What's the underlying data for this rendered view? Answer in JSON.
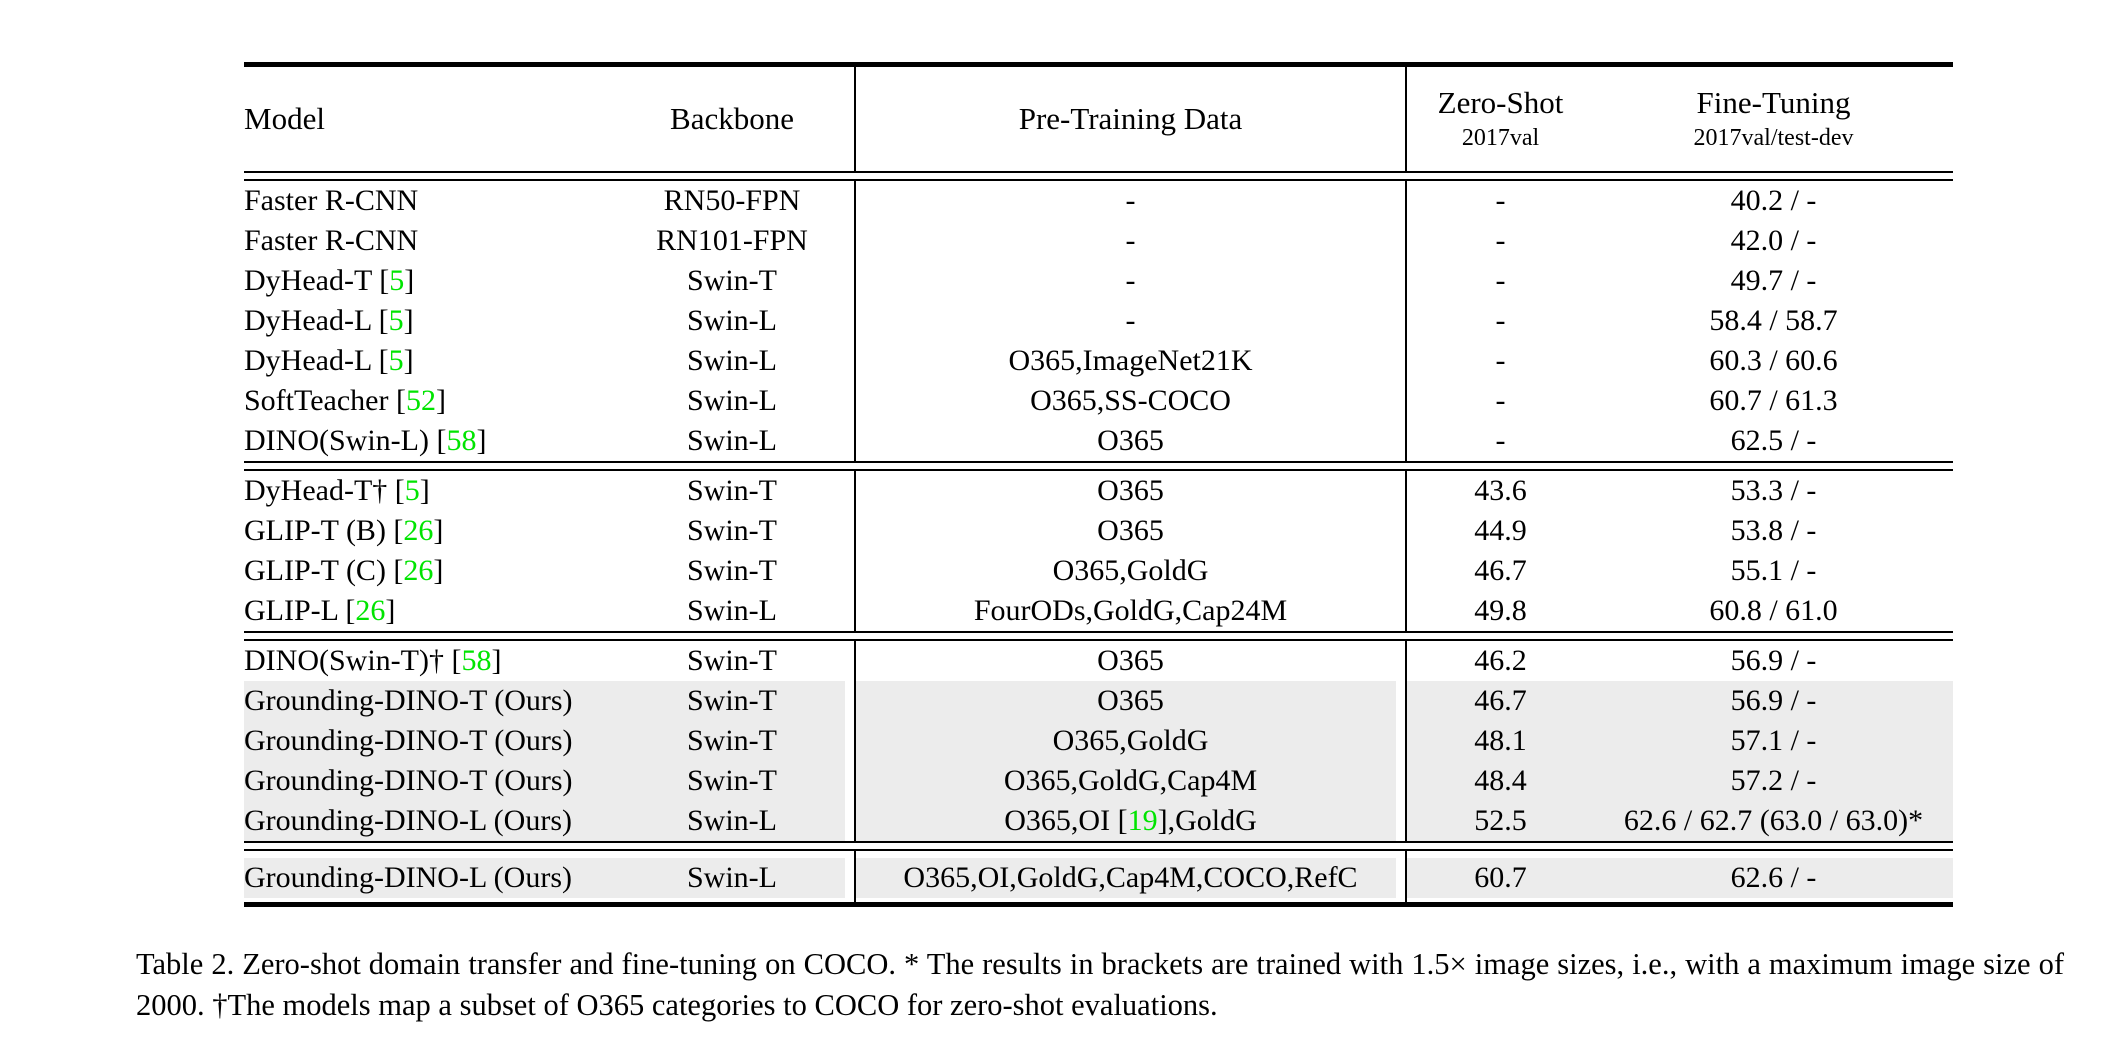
{
  "colors": {
    "row_shade": "#ececec",
    "citation_green": "#00e400",
    "rule": "#000000"
  },
  "table": {
    "columns": [
      {
        "key": "model",
        "label": "Model",
        "sublabel": ""
      },
      {
        "key": "backbone",
        "label": "Backbone",
        "sublabel": ""
      },
      {
        "key": "pretrain",
        "label": "Pre-Training Data",
        "sublabel": ""
      },
      {
        "key": "zeroshot",
        "label": "Zero-Shot",
        "sublabel": "2017val"
      },
      {
        "key": "finetune",
        "label": "Fine-Tuning",
        "sublabel": "2017val/test-dev"
      }
    ],
    "blocks": [
      {
        "rows": [
          {
            "model": "Faster R-CNN",
            "backbone": "RN50-FPN",
            "pretrain": "-",
            "zeroshot": "-",
            "finetune": "40.2 / -"
          },
          {
            "model": "Faster R-CNN",
            "backbone": "RN101-FPN",
            "pretrain": "-",
            "zeroshot": "-",
            "finetune": "42.0 / -"
          },
          {
            "model": "DyHead-T [5]",
            "backbone": "Swin-T",
            "pretrain": "-",
            "zeroshot": "-",
            "finetune": "49.7 / -"
          },
          {
            "model": "DyHead-L [5]",
            "backbone": "Swin-L",
            "pretrain": "-",
            "zeroshot": "-",
            "finetune": "58.4 / 58.7"
          },
          {
            "model": "DyHead-L [5]",
            "backbone": "Swin-L",
            "pretrain": "O365,ImageNet21K",
            "zeroshot": "-",
            "finetune": "60.3 / 60.6"
          },
          {
            "model": "SoftTeacher [52]",
            "backbone": "Swin-L",
            "pretrain": "O365,SS-COCO",
            "zeroshot": "-",
            "finetune": "60.7 / 61.3"
          },
          {
            "model": "DINO(Swin-L) [58]",
            "backbone": "Swin-L",
            "pretrain": "O365",
            "zeroshot": "-",
            "finetune": "62.5 / -"
          }
        ]
      },
      {
        "rows": [
          {
            "model": "DyHead-T† [5]",
            "backbone": "Swin-T",
            "pretrain": "O365",
            "zeroshot": "43.6",
            "finetune": "53.3 / -"
          },
          {
            "model": "GLIP-T (B) [26]",
            "backbone": "Swin-T",
            "pretrain": "O365",
            "zeroshot": "44.9",
            "finetune": "53.8 / -"
          },
          {
            "model": "GLIP-T (C) [26]",
            "backbone": "Swin-T",
            "pretrain": "O365,GoldG",
            "zeroshot": "46.7",
            "finetune": "55.1 / -"
          },
          {
            "model": "GLIP-L [26]",
            "backbone": "Swin-L",
            "pretrain": "FourODs,GoldG,Cap24M",
            "zeroshot": "49.8",
            "finetune": "60.8 / 61.0"
          }
        ]
      },
      {
        "rows": [
          {
            "model": "DINO(Swin-T)† [58]",
            "backbone": "Swin-T",
            "pretrain": "O365",
            "zeroshot": "46.2",
            "finetune": "56.9 / -"
          },
          {
            "model": "Grounding-DINO-T (Ours)",
            "backbone": "Swin-T",
            "pretrain": "O365",
            "zeroshot": "46.7",
            "finetune": "56.9 / -",
            "shaded": true
          },
          {
            "model": "Grounding-DINO-T (Ours)",
            "backbone": "Swin-T",
            "pretrain": "O365,GoldG",
            "zeroshot": "48.1",
            "finetune": "57.1 / -",
            "shaded": true
          },
          {
            "model": "Grounding-DINO-T (Ours)",
            "backbone": "Swin-T",
            "pretrain": "O365,GoldG,Cap4M",
            "zeroshot": "48.4",
            "finetune": "57.2 / -",
            "shaded": true
          },
          {
            "model": "Grounding-DINO-L (Ours)",
            "backbone": "Swin-L",
            "pretrain": "O365,OI [19],GoldG",
            "zeroshot": "52.5",
            "finetune": "62.6 / 62.7 (63.0 / 63.0)*",
            "shaded": true,
            "bold": [
              "zeroshot",
              "finetune"
            ]
          }
        ]
      },
      {
        "spaced": true,
        "rows": [
          {
            "model": "Grounding-DINO-L (Ours)",
            "backbone": "Swin-L",
            "pretrain": "O365,OI,GoldG,Cap4M,COCO,RefC",
            "zeroshot": "60.7",
            "finetune": "62.6 / -",
            "shaded": true,
            "bold": [
              "zeroshot",
              "finetune"
            ]
          }
        ]
      }
    ]
  },
  "caption": "Table 2.  Zero-shot domain transfer and fine-tuning on COCO. * The results in brackets are trained with 1.5× image sizes, i.e., with a maximum image size of 2000. †The models map a subset of O365 categories to COCO for zero-shot evaluations."
}
